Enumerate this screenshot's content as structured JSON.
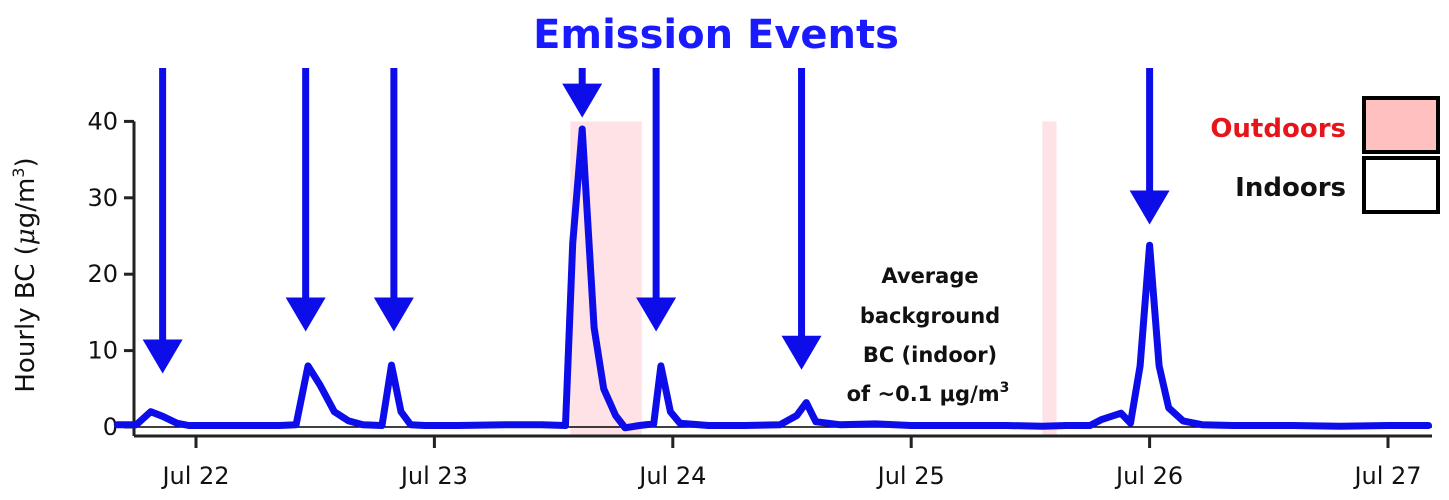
{
  "chart_data": {
    "type": "line",
    "title": "Emission Events",
    "ylabel": "Hourly BC (μg/m³)",
    "ylabel_parts": {
      "main": "Hourly BC (",
      "mu": "μ",
      "unit": "g/m",
      "sup": "3",
      "close": ")"
    },
    "xlabel": "",
    "x_start": "Jul 21 16:00",
    "x_end": "Jul 27 04:00",
    "ylim": [
      -2,
      40
    ],
    "x_ticks": [
      {
        "label": "Jul 22",
        "day": 22
      },
      {
        "label": "Jul 23",
        "day": 23
      },
      {
        "label": "Jul 24",
        "day": 24
      },
      {
        "label": "Jul 25",
        "day": 25
      },
      {
        "label": "Jul 26",
        "day": 26
      },
      {
        "label": "Jul 27",
        "day": 27
      }
    ],
    "y_ticks": [
      0,
      10,
      20,
      30,
      40
    ],
    "grid": false,
    "zero_line": true,
    "series": [
      {
        "color": "#0d0dea",
        "x_day": [
          21.67,
          21.75,
          21.81,
          21.86,
          21.92,
          21.97,
          22.05,
          22.2,
          22.35,
          22.42,
          22.47,
          22.52,
          22.58,
          22.64,
          22.7,
          22.78,
          22.82,
          22.86,
          22.9,
          22.96,
          23.1,
          23.3,
          23.45,
          23.55,
          23.58,
          23.62,
          23.67,
          23.71,
          23.76,
          23.8,
          23.86,
          23.92,
          23.95,
          23.99,
          24.03,
          24.15,
          24.3,
          24.45,
          24.52,
          24.56,
          24.6,
          24.7,
          24.85,
          25.0,
          25.2,
          25.4,
          25.55,
          25.65,
          25.75,
          25.8,
          25.88,
          25.92,
          25.96,
          26.0,
          26.04,
          26.08,
          26.14,
          26.22,
          26.35,
          26.6,
          26.8,
          27.0,
          27.17
        ],
        "y": [
          0.3,
          0.3,
          2.0,
          1.4,
          0.5,
          0.2,
          0.2,
          0.2,
          0.2,
          0.3,
          8.0,
          5.5,
          2.0,
          0.8,
          0.3,
          0.2,
          8.1,
          2.0,
          0.3,
          0.2,
          0.2,
          0.3,
          0.3,
          0.2,
          24.0,
          39.0,
          13.0,
          5.0,
          1.5,
          -0.1,
          0.2,
          0.4,
          8.0,
          2.0,
          0.5,
          0.2,
          0.2,
          0.3,
          1.5,
          3.2,
          0.7,
          0.3,
          0.4,
          0.2,
          0.2,
          0.2,
          0.1,
          0.2,
          0.2,
          1.0,
          1.8,
          0.5,
          8.0,
          23.8,
          8.0,
          2.5,
          0.8,
          0.3,
          0.2,
          0.2,
          0.1,
          0.2,
          0.2
        ]
      }
    ],
    "outdoor_periods": [
      {
        "start_day": 23.57,
        "end_day": 23.87
      },
      {
        "start_day": 25.55,
        "end_day": 25.61
      }
    ],
    "event_arrows": [
      {
        "day": 21.86,
        "head_y": 7.0,
        "tail": "top"
      },
      {
        "day": 22.46,
        "head_y": 12.5,
        "tail": "top"
      },
      {
        "day": 22.83,
        "head_y": 12.5,
        "tail": "top"
      },
      {
        "day": 23.62,
        "head_y": 40.5,
        "tail": "title"
      },
      {
        "day": 23.93,
        "head_y": 12.5,
        "tail": "top"
      },
      {
        "day": 24.54,
        "head_y": 7.5,
        "tail": "top"
      },
      {
        "day": 26.0,
        "head_y": 26.5,
        "tail": "top"
      }
    ],
    "legend": {
      "placement": "top-right",
      "entries": [
        {
          "label": "Outdoors",
          "text_color": "#e8141c",
          "fill": "#ffc0c0"
        },
        {
          "label": "Indoors",
          "text_color": "#111111",
          "fill": "#ffffff"
        }
      ]
    },
    "annotation": {
      "lines": [
        "Average",
        "background",
        "BC (indoor)",
        "of ~0.1 μg/m"
      ],
      "sup": "3"
    }
  }
}
